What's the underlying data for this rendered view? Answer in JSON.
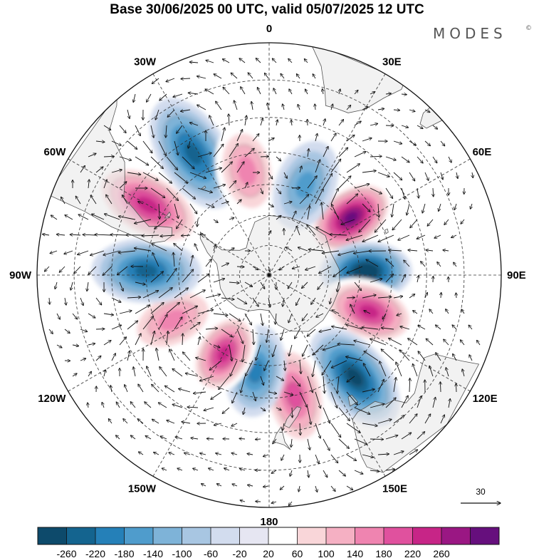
{
  "title": "Base 30/06/2025 00 UTC, valid 05/07/2025 12 UTC",
  "brand": {
    "name": "MODES",
    "mark": "©"
  },
  "map": {
    "projection": "south-polar-stereographic",
    "longitude_labels": [
      {
        "text": "0",
        "lon": 0
      },
      {
        "text": "30E",
        "lon": 30
      },
      {
        "text": "60E",
        "lon": 60
      },
      {
        "text": "90E",
        "lon": 90
      },
      {
        "text": "120E",
        "lon": 120
      },
      {
        "text": "150E",
        "lon": 150
      },
      {
        "text": "180",
        "lon": 180
      },
      {
        "text": "150W",
        "lon": -150
      },
      {
        "text": "120W",
        "lon": -120
      },
      {
        "text": "90W",
        "lon": -90
      },
      {
        "text": "60W",
        "lon": -60
      },
      {
        "text": "30W",
        "lon": -30
      }
    ],
    "anomaly_centers": [
      {
        "sign": "positive",
        "lon": 55,
        "lat": -57,
        "value": 260
      },
      {
        "sign": "negative",
        "lon": 88,
        "lat": -58,
        "value": -260
      },
      {
        "sign": "positive",
        "lon": 110,
        "lat": -55,
        "value": 200
      },
      {
        "sign": "negative",
        "lon": 140,
        "lat": -47,
        "value": -240
      },
      {
        "sign": "positive",
        "lon": 168,
        "lat": -50,
        "value": 140
      },
      {
        "sign": "negative",
        "lon": -172,
        "lat": -58,
        "value": -160
      },
      {
        "sign": "positive",
        "lon": -150,
        "lat": -60,
        "value": 180
      },
      {
        "sign": "positive",
        "lon": -115,
        "lat": -55,
        "value": 100
      },
      {
        "sign": "negative",
        "lon": -88,
        "lat": -50,
        "value": -200
      },
      {
        "sign": "positive",
        "lon": -60,
        "lat": -45,
        "value": 200
      },
      {
        "sign": "negative",
        "lon": -32,
        "lat": -44,
        "value": -180
      },
      {
        "sign": "positive",
        "lon": -12,
        "lat": -55,
        "value": 100
      },
      {
        "sign": "negative",
        "lon": 22,
        "lat": -58,
        "value": -120
      }
    ]
  },
  "colorbar": {
    "ticks": [
      "-260",
      "-220",
      "-180",
      "-140",
      "-100",
      "-60",
      "-20",
      "20",
      "60",
      "100",
      "140",
      "180",
      "220",
      "260"
    ],
    "colors": [
      "#0d4a6b",
      "#14648f",
      "#2580b8",
      "#4f9ccc",
      "#7eb3d8",
      "#a8c6e2",
      "#d2dcee",
      "#e6e6f2",
      "#ffffff",
      "#f9d6d9",
      "#f5b0c3",
      "#ef84b0",
      "#e0519e",
      "#c72587",
      "#9a1783",
      "#660f7d"
    ]
  },
  "vector_reference": {
    "label": "30"
  },
  "colors": {
    "land": "#e8e8e8",
    "coast": "#555555"
  }
}
